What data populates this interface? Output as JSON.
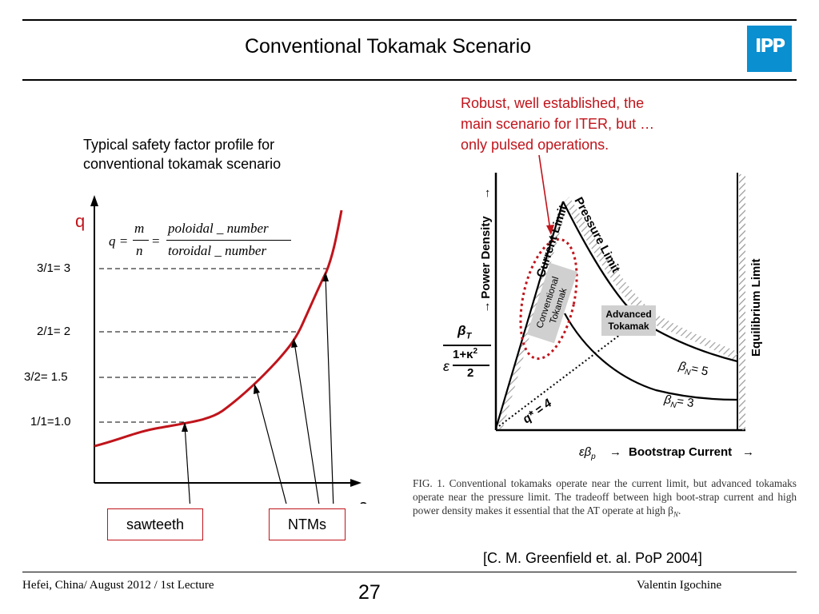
{
  "header": {
    "title": "Conventional Tokamak Scenario",
    "logo_text": "IPP",
    "logo_color": "#0a8fd0"
  },
  "left_panel": {
    "caption_line1": "Typical safety factor profile for",
    "caption_line2": "conventional tokamak scenario",
    "y_axis_label": "q",
    "x_axis_label": "ρ",
    "formula": {
      "lhs": "q =",
      "num1": "m",
      "den1": "n",
      "eq": "=",
      "num2": "poloidal _ number",
      "den2": "toroidal _ number"
    },
    "levels": [
      {
        "label": "3/1= 3",
        "q": 3
      },
      {
        "label": "2/1= 2",
        "q": 2
      },
      {
        "label": "3/2= 1.5",
        "q": 1.5
      },
      {
        "label": "1/1=1.0",
        "q": 1.0
      }
    ],
    "callouts": {
      "sawteeth": "sawteeth",
      "ntms": "NTMs"
    },
    "curve_color": "#c0141b"
  },
  "right_panel": {
    "note_line1": "Robust, well established, the",
    "note_line2": "main scenario for ITER, but …",
    "note_line3": "only pulsed operations.",
    "figure": {
      "y_axis": "Power Density",
      "x_axis_prefix": "εβ",
      "x_axis_sub": "p",
      "x_axis": "Bootstrap Current",
      "current_limit": "Current Limit",
      "pressure_limit": "Pressure Limit",
      "equilibrium_limit": "Equilibrium Limit",
      "conventional_line1": "Conventional",
      "conventional_line2": "Tokamak",
      "advanced_line1": "Advanced",
      "advanced_line2": "Tokamak",
      "betaN5": "= 5",
      "betaN3": "= 3",
      "q4": "q* = 4",
      "ylabel_beta": "β",
      "ylabel_beta_sub": "T",
      "ylabel_num": "1+κ",
      "ylabel_eps": "ε",
      "ylabel_den": "2"
    },
    "fig_caption": "FIG. 1. Conventional tokamaks operate near the current limit, but advanced tokamaks operate near the pressure limit. The tradeoff between high boot-strap current and high power density makes it essential that the AT operate at high β",
    "fig_caption_sub": "N",
    "citation": "[C. M. Greenfield et. al. PoP 2004]"
  },
  "footer": {
    "left": "Hefei, China/ August 2012 / 1st Lecture",
    "page": "27",
    "right": "Valentin Igochine"
  }
}
